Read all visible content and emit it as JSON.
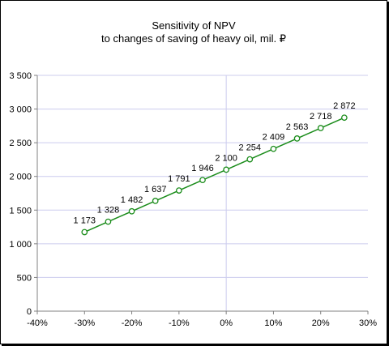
{
  "chart_data": {
    "type": "line",
    "title_line1": "Sensitivity of NPV",
    "title_line2": "to changes of  saving  of heavy oil, mil. ₽",
    "xlabel": "",
    "ylabel": "",
    "xlim": [
      -40,
      30
    ],
    "ylim": [
      0,
      3500
    ],
    "x_ticks": [
      -40,
      -30,
      -20,
      -10,
      0,
      10,
      20,
      30
    ],
    "x_tick_labels": [
      "-40%",
      "-30%",
      "-20%",
      "-10%",
      "0%",
      "10%",
      "20%",
      "30%"
    ],
    "y_ticks": [
      0,
      500,
      1000,
      1500,
      2000,
      2500,
      3000,
      3500
    ],
    "y_tick_labels": [
      "0",
      "500",
      "1 000",
      "1 500",
      "2 000",
      "2 500",
      "3 000",
      "3 500"
    ],
    "grid": true,
    "series": [
      {
        "x": [
          -30,
          -25,
          -20,
          -15,
          -10,
          -5,
          0,
          5,
          10,
          15,
          20,
          25
        ],
        "values": [
          1173,
          1328,
          1482,
          1637,
          1791,
          1946,
          2100,
          2254,
          2409,
          2563,
          2718,
          2872
        ],
        "labels": [
          "1 173",
          "1 328",
          "1 482",
          "1 637",
          "1 791",
          "1 946",
          "2 100",
          "2 254",
          "2 409",
          "2 563",
          "2 718",
          "2 872"
        ],
        "color": "#1a8c1a",
        "marker": "hollow-circle"
      }
    ],
    "grid_color": "#ccccee",
    "axis_color": "#808080"
  }
}
